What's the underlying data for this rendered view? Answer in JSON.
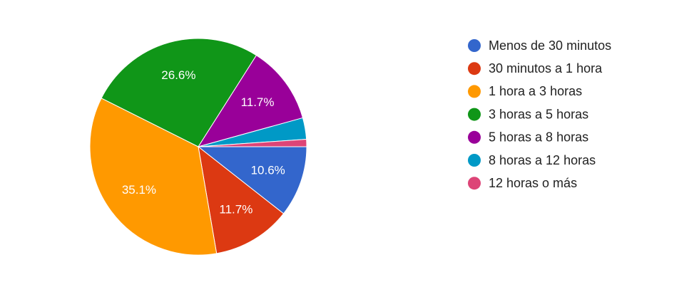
{
  "chart_data": {
    "type": "pie",
    "categories": [
      "Menos de 30 minutos",
      "30 minutos a 1 hora",
      "1 hora a 3 horas",
      "3 horas a 5 horas",
      "5 horas a 8 horas",
      "8 horas a 12 horas",
      "12 horas o más"
    ],
    "values": [
      10.6,
      11.7,
      35.1,
      26.6,
      11.7,
      3.2,
      1.1
    ],
    "value_labels": [
      "10.6%",
      "11.7%",
      "35.1%",
      "26.6%",
      "11.7%",
      null,
      null
    ],
    "colors": [
      "#3366cc",
      "#dc3912",
      "#ff9900",
      "#109618",
      "#990099",
      "#0099c6",
      "#dd4477"
    ],
    "legend": "right"
  }
}
